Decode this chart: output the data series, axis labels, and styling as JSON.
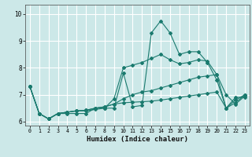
{
  "xlabel": "Humidex (Indice chaleur)",
  "background_color": "#cce8e8",
  "grid_color": "#ffffff",
  "line_color": "#1a7a6e",
  "xlim": [
    -0.5,
    23.5
  ],
  "ylim": [
    5.85,
    10.35
  ],
  "yticks": [
    6,
    7,
    8,
    9,
    10
  ],
  "xticks": [
    0,
    1,
    2,
    3,
    4,
    5,
    6,
    7,
    8,
    9,
    10,
    11,
    12,
    13,
    14,
    15,
    16,
    17,
    18,
    19,
    20,
    21,
    22,
    23
  ],
  "series": [
    [
      7.3,
      6.3,
      6.1,
      6.3,
      6.3,
      6.3,
      6.3,
      6.5,
      6.5,
      6.5,
      7.8,
      6.55,
      6.6,
      9.3,
      9.75,
      9.3,
      8.5,
      8.6,
      8.6,
      8.2,
      7.55,
      6.5,
      6.9,
      6.9
    ],
    [
      7.3,
      6.3,
      6.1,
      6.3,
      6.35,
      6.4,
      6.4,
      6.45,
      6.5,
      6.85,
      8.0,
      8.1,
      8.2,
      8.35,
      8.5,
      8.3,
      8.15,
      8.2,
      8.3,
      8.25,
      7.75,
      7.0,
      6.65,
      6.95
    ],
    [
      7.3,
      6.3,
      6.1,
      6.3,
      6.35,
      6.4,
      6.42,
      6.5,
      6.55,
      6.65,
      6.85,
      7.0,
      7.1,
      7.15,
      7.25,
      7.35,
      7.45,
      7.55,
      7.65,
      7.7,
      7.75,
      6.5,
      6.8,
      7.0
    ],
    [
      7.3,
      6.3,
      6.1,
      6.3,
      6.35,
      6.4,
      6.42,
      6.5,
      6.55,
      6.65,
      6.7,
      6.72,
      6.74,
      6.76,
      6.8,
      6.85,
      6.9,
      6.95,
      7.0,
      7.05,
      7.1,
      6.5,
      6.7,
      7.0
    ]
  ]
}
